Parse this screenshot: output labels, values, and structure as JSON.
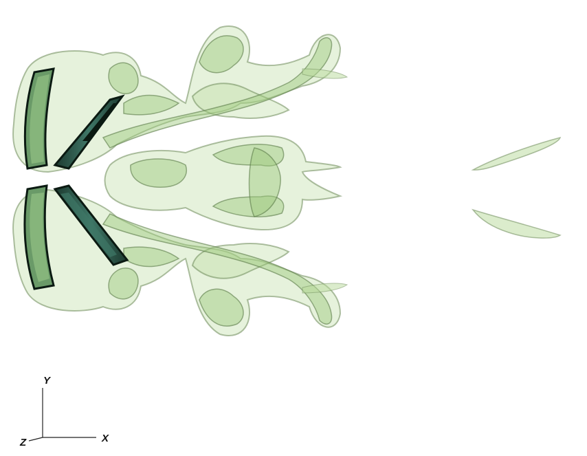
{
  "axes_triad": {
    "labels": {
      "y": "Y",
      "x": "X",
      "z": "Z"
    }
  },
  "colors": {
    "background": "#ffffff",
    "isosurface_fill": "#a9cf86",
    "isosurface_stroke": "#5e7a4c",
    "inner_core": "#6f9a55",
    "wing_panel": "#2f5f52",
    "wing_edge": "#0b1a12",
    "axis_line": "#222222"
  }
}
